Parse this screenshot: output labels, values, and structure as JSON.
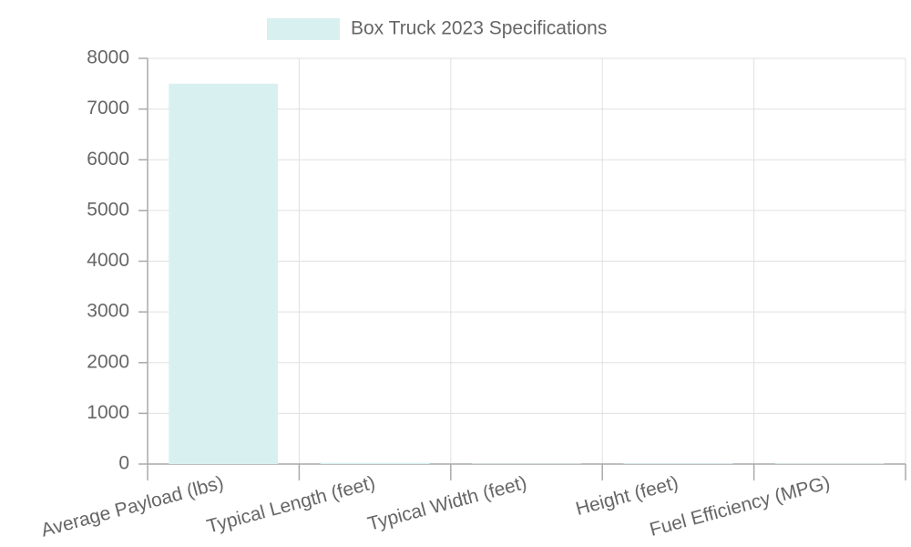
{
  "chart_data": {
    "type": "bar",
    "categories": [
      "Average Payload (lbs)",
      "Typical Length (feet)",
      "Typical Width (feet)",
      "Height (feet)",
      "Fuel Efficiency (MPG)"
    ],
    "series": [
      {
        "name": "Box Truck 2023 Specifications",
        "color": "#d9f0f0",
        "values": [
          7500,
          24,
          8,
          12,
          10
        ]
      }
    ],
    "ylim": [
      0,
      8000
    ],
    "yticks": [
      0,
      1000,
      2000,
      3000,
      4000,
      5000,
      6000,
      7000,
      8000
    ],
    "grid": true,
    "legend": "top"
  }
}
